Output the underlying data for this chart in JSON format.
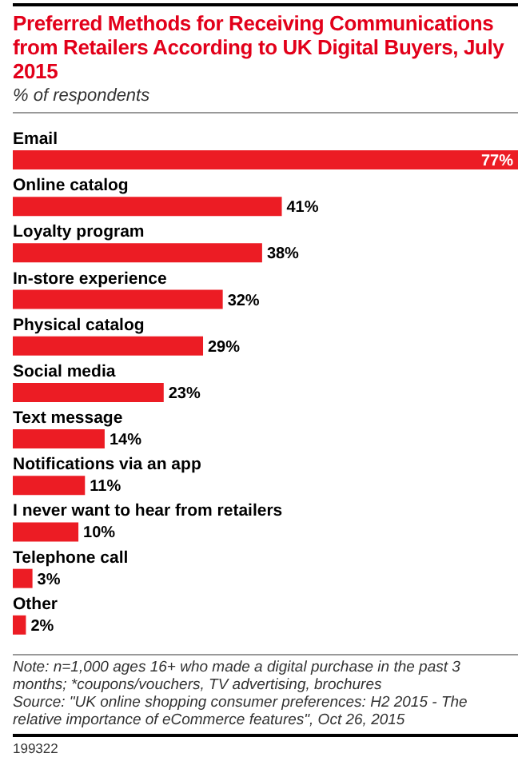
{
  "chart_data": {
    "type": "bar",
    "orientation": "horizontal",
    "title": "Preferred Methods for Receiving Communications from Retailers According to UK Digital Buyers, July 2015",
    "subtitle": "% of respondents",
    "categories": [
      "Email",
      "Online catalog",
      "Loyalty program",
      "In-store experience",
      "Physical catalog",
      "Social media",
      "Text message",
      "Notifications via an app",
      "I never want to hear from retailers",
      "Telephone call",
      "Other"
    ],
    "values": [
      77,
      41,
      38,
      32,
      29,
      23,
      14,
      11,
      10,
      3,
      2
    ],
    "value_labels": [
      "77%",
      "41%",
      "38%",
      "32%",
      "29%",
      "23%",
      "14%",
      "11%",
      "10%",
      "3%",
      "2%"
    ],
    "color": "#ec1c24",
    "tick_labels": false,
    "annotations": [
      "Note: n=1,000 ages 16+ who made a digital purchase in the past 3 months; *coupons/vouchers, TV advertising, brochures",
      "Source: \"UK online shopping consumer preferences: H2 2015 - The relative importance of eCommerce features\", Oct 26, 2015",
      "199322"
    ]
  }
}
